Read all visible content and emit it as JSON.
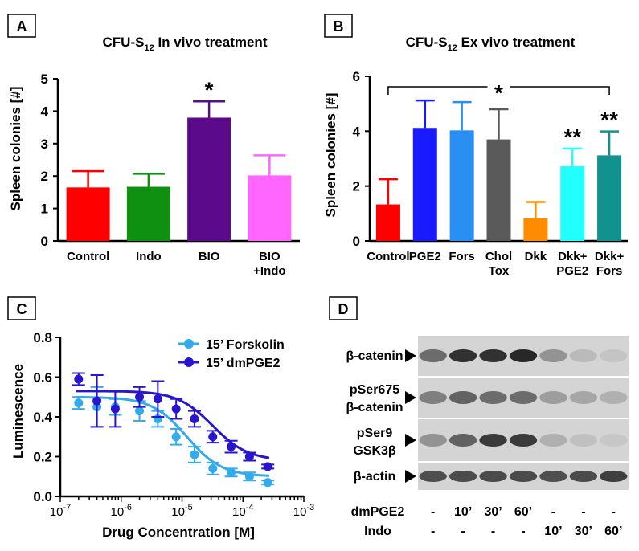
{
  "panels": {
    "A": {
      "letter": "A",
      "title": "CFU-S",
      "title_sub": "12",
      "title_rest": " In vivo treatment"
    },
    "B": {
      "letter": "B",
      "title": "CFU-S",
      "title_sub": "12",
      "title_rest": " Ex vivo treatment"
    },
    "C": {
      "letter": "C"
    },
    "D": {
      "letter": "D"
    }
  },
  "chart_data": [
    {
      "panel": "A",
      "type": "bar",
      "title": "CFU-S12 In vivo treatment",
      "ylabel": "Spleen colonies [#]",
      "ylim": [
        0,
        5
      ],
      "yticks": [
        "0",
        "1",
        "2",
        "3",
        "4",
        "5"
      ],
      "categories": [
        "Control",
        "Indo",
        "BIO",
        "BIO\n+Indo"
      ],
      "category_lines": [
        [
          "Control"
        ],
        [
          "Indo"
        ],
        [
          "BIO"
        ],
        [
          "BIO",
          "+Indo"
        ]
      ],
      "values": [
        1.65,
        1.67,
        3.8,
        2.02
      ],
      "errors": [
        0.5,
        0.4,
        0.5,
        0.62
      ],
      "colors": [
        "#ff0000",
        "#109010",
        "#5c0a8c",
        "#ff66ff"
      ],
      "annotations": [
        {
          "category": "BIO",
          "text": "*"
        }
      ]
    },
    {
      "panel": "B",
      "type": "bar",
      "title": "CFU-S12 Ex vivo treatment",
      "ylabel": "Spleen colonies [#]",
      "ylim": [
        0,
        6
      ],
      "yticks": [
        "0",
        "2",
        "4",
        "6"
      ],
      "categories": [
        "Control",
        "PGE2",
        "Fors",
        "Chol Tox",
        "Dkk",
        "Dkk+ PGE2",
        "Dkk+ Fors"
      ],
      "category_lines": [
        [
          "Control"
        ],
        [
          "PGE2"
        ],
        [
          "Fors"
        ],
        [
          "Chol",
          "Tox"
        ],
        [
          "Dkk"
        ],
        [
          "Dkk+",
          "PGE2"
        ],
        [
          "Dkk+",
          "Fors"
        ]
      ],
      "values": [
        1.33,
        4.12,
        4.03,
        3.7,
        0.82,
        2.72,
        3.12
      ],
      "errors": [
        0.92,
        1.0,
        1.03,
        1.1,
        0.6,
        0.65,
        0.87
      ],
      "colors": [
        "#ff0000",
        "#1a1aff",
        "#2a8ff2",
        "#5a5a5a",
        "#ff8c00",
        "#22ffff",
        "#12928e"
      ],
      "annotations": [
        {
          "category": "Dkk+ PGE2",
          "text": "**"
        },
        {
          "category": "Dkk+ Fors",
          "text": "**"
        },
        {
          "bracket": [
            "Control",
            "Dkk+ Fors"
          ],
          "text": "*"
        }
      ]
    },
    {
      "panel": "C",
      "type": "scatter",
      "xlabel": "Drug Concentration [M]",
      "ylabel": "Luminescence",
      "xscale": "log",
      "xlim": [
        1e-07,
        0.001
      ],
      "ylim": [
        0,
        0.8
      ],
      "xtick_exponents": [
        "-7",
        "-6",
        "-5",
        "-4",
        "-3"
      ],
      "xtick_base": "10",
      "yticks": [
        "0.0",
        "0.2",
        "0.4",
        "0.6",
        "0.8"
      ],
      "legend": "top-right",
      "series": [
        {
          "name": "15’ Forskolin",
          "color": "#33aaee",
          "x": [
            2e-07,
            4e-07,
            8e-07,
            2e-06,
            4e-06,
            8e-06,
            1.6e-05,
            3.2e-05,
            6.4e-05,
            0.000128,
            0.000256
          ],
          "y": [
            0.47,
            0.45,
            0.45,
            0.43,
            0.39,
            0.3,
            0.21,
            0.14,
            0.12,
            0.1,
            0.07
          ],
          "err": [
            0.03,
            0.1,
            0.04,
            0.05,
            0.04,
            0.04,
            0.04,
            0.03,
            0.02,
            0.02,
            0.01
          ],
          "fit": {
            "top": 0.5,
            "bottom": 0.1,
            "ic50": 1.2e-05,
            "hill": 1.5
          }
        },
        {
          "name": "15’ dmPGE2",
          "color": "#2a15cf",
          "x": [
            2e-07,
            4e-07,
            8e-07,
            2e-06,
            4e-06,
            8e-06,
            1.6e-05,
            3.2e-05,
            6.4e-05,
            0.000128,
            0.000256
          ],
          "y": [
            0.59,
            0.48,
            0.44,
            0.5,
            0.49,
            0.44,
            0.39,
            0.3,
            0.25,
            0.2,
            0.15
          ],
          "err": [
            0.03,
            0.13,
            0.09,
            0.05,
            0.09,
            0.05,
            0.04,
            0.03,
            0.03,
            0.02,
            0.01
          ],
          "fit": {
            "top": 0.53,
            "bottom": 0.18,
            "ic50": 3.2e-05,
            "hill": 1.5
          }
        }
      ]
    }
  ],
  "western": {
    "rows": [
      {
        "lines": [
          "β-catenin"
        ]
      },
      {
        "lines": [
          "pSer675",
          "β-catenin"
        ]
      },
      {
        "lines": [
          "pSer9",
          "GSK3β"
        ]
      },
      {
        "lines": [
          "β-actin"
        ]
      }
    ],
    "lanes": [
      {
        "dmPGE2": "-",
        "Indo": "-"
      },
      {
        "dmPGE2": "10’",
        "Indo": "-"
      },
      {
        "dmPGE2": "30’",
        "Indo": "-"
      },
      {
        "dmPGE2": "60’",
        "Indo": "-"
      },
      {
        "dmPGE2": "-",
        "Indo": "10’"
      },
      {
        "dmPGE2": "-",
        "Indo": "30’"
      },
      {
        "dmPGE2": "-",
        "Indo": "60’"
      }
    ],
    "treatments": [
      "dmPGE2",
      "Indo"
    ],
    "intensity": [
      [
        0.55,
        0.85,
        0.85,
        0.9,
        0.35,
        0.15,
        0.1
      ],
      [
        0.45,
        0.6,
        0.55,
        0.55,
        0.3,
        0.25,
        0.2
      ],
      [
        0.35,
        0.6,
        0.8,
        0.8,
        0.2,
        0.12,
        0.08
      ],
      [
        0.7,
        0.72,
        0.72,
        0.72,
        0.7,
        0.72,
        0.78
      ]
    ]
  }
}
